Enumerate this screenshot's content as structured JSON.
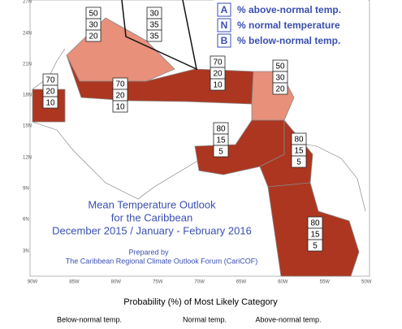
{
  "map": {
    "title_lines": [
      "Mean Temperature Outlook",
      "for the Caribbean",
      "December 2015 / January - February 2016"
    ],
    "prepared_lines": [
      "Prepared by",
      "The Caribbean Regional Climate Outlook Forum (CariCOF)"
    ],
    "legend": [
      {
        "letter": "A",
        "text": "% above-normal temp."
      },
      {
        "letter": "N",
        "text": "% normal temperature"
      },
      {
        "letter": "B",
        "text": "% below-normal temp."
      }
    ],
    "lat_labels": [
      "27N",
      "24N",
      "21N",
      "18N",
      "15N",
      "12N",
      "9N",
      "6N",
      "3N"
    ],
    "lon_labels": [
      "90W",
      "85W",
      "80W",
      "75W",
      "70W",
      "65W",
      "60W",
      "55W",
      "50W"
    ],
    "regions": [
      {
        "values": [
          50,
          30,
          20
        ]
      },
      {
        "values": [
          30,
          35,
          35
        ]
      },
      {
        "values": [
          70,
          20,
          10
        ]
      },
      {
        "values": [
          70,
          20,
          10
        ]
      },
      {
        "values": [
          70,
          20,
          10
        ]
      },
      {
        "values": [
          50,
          30,
          20
        ]
      },
      {
        "values": [
          80,
          15,
          5
        ]
      },
      {
        "values": [
          80,
          15,
          5
        ]
      },
      {
        "values": [
          80,
          15,
          5
        ]
      }
    ],
    "footer": {
      "caption": "Probability (%) of Most Likely Category",
      "categories": [
        "Below-normal temp.",
        "Normal temp.",
        "Above-normal temp."
      ]
    }
  }
}
